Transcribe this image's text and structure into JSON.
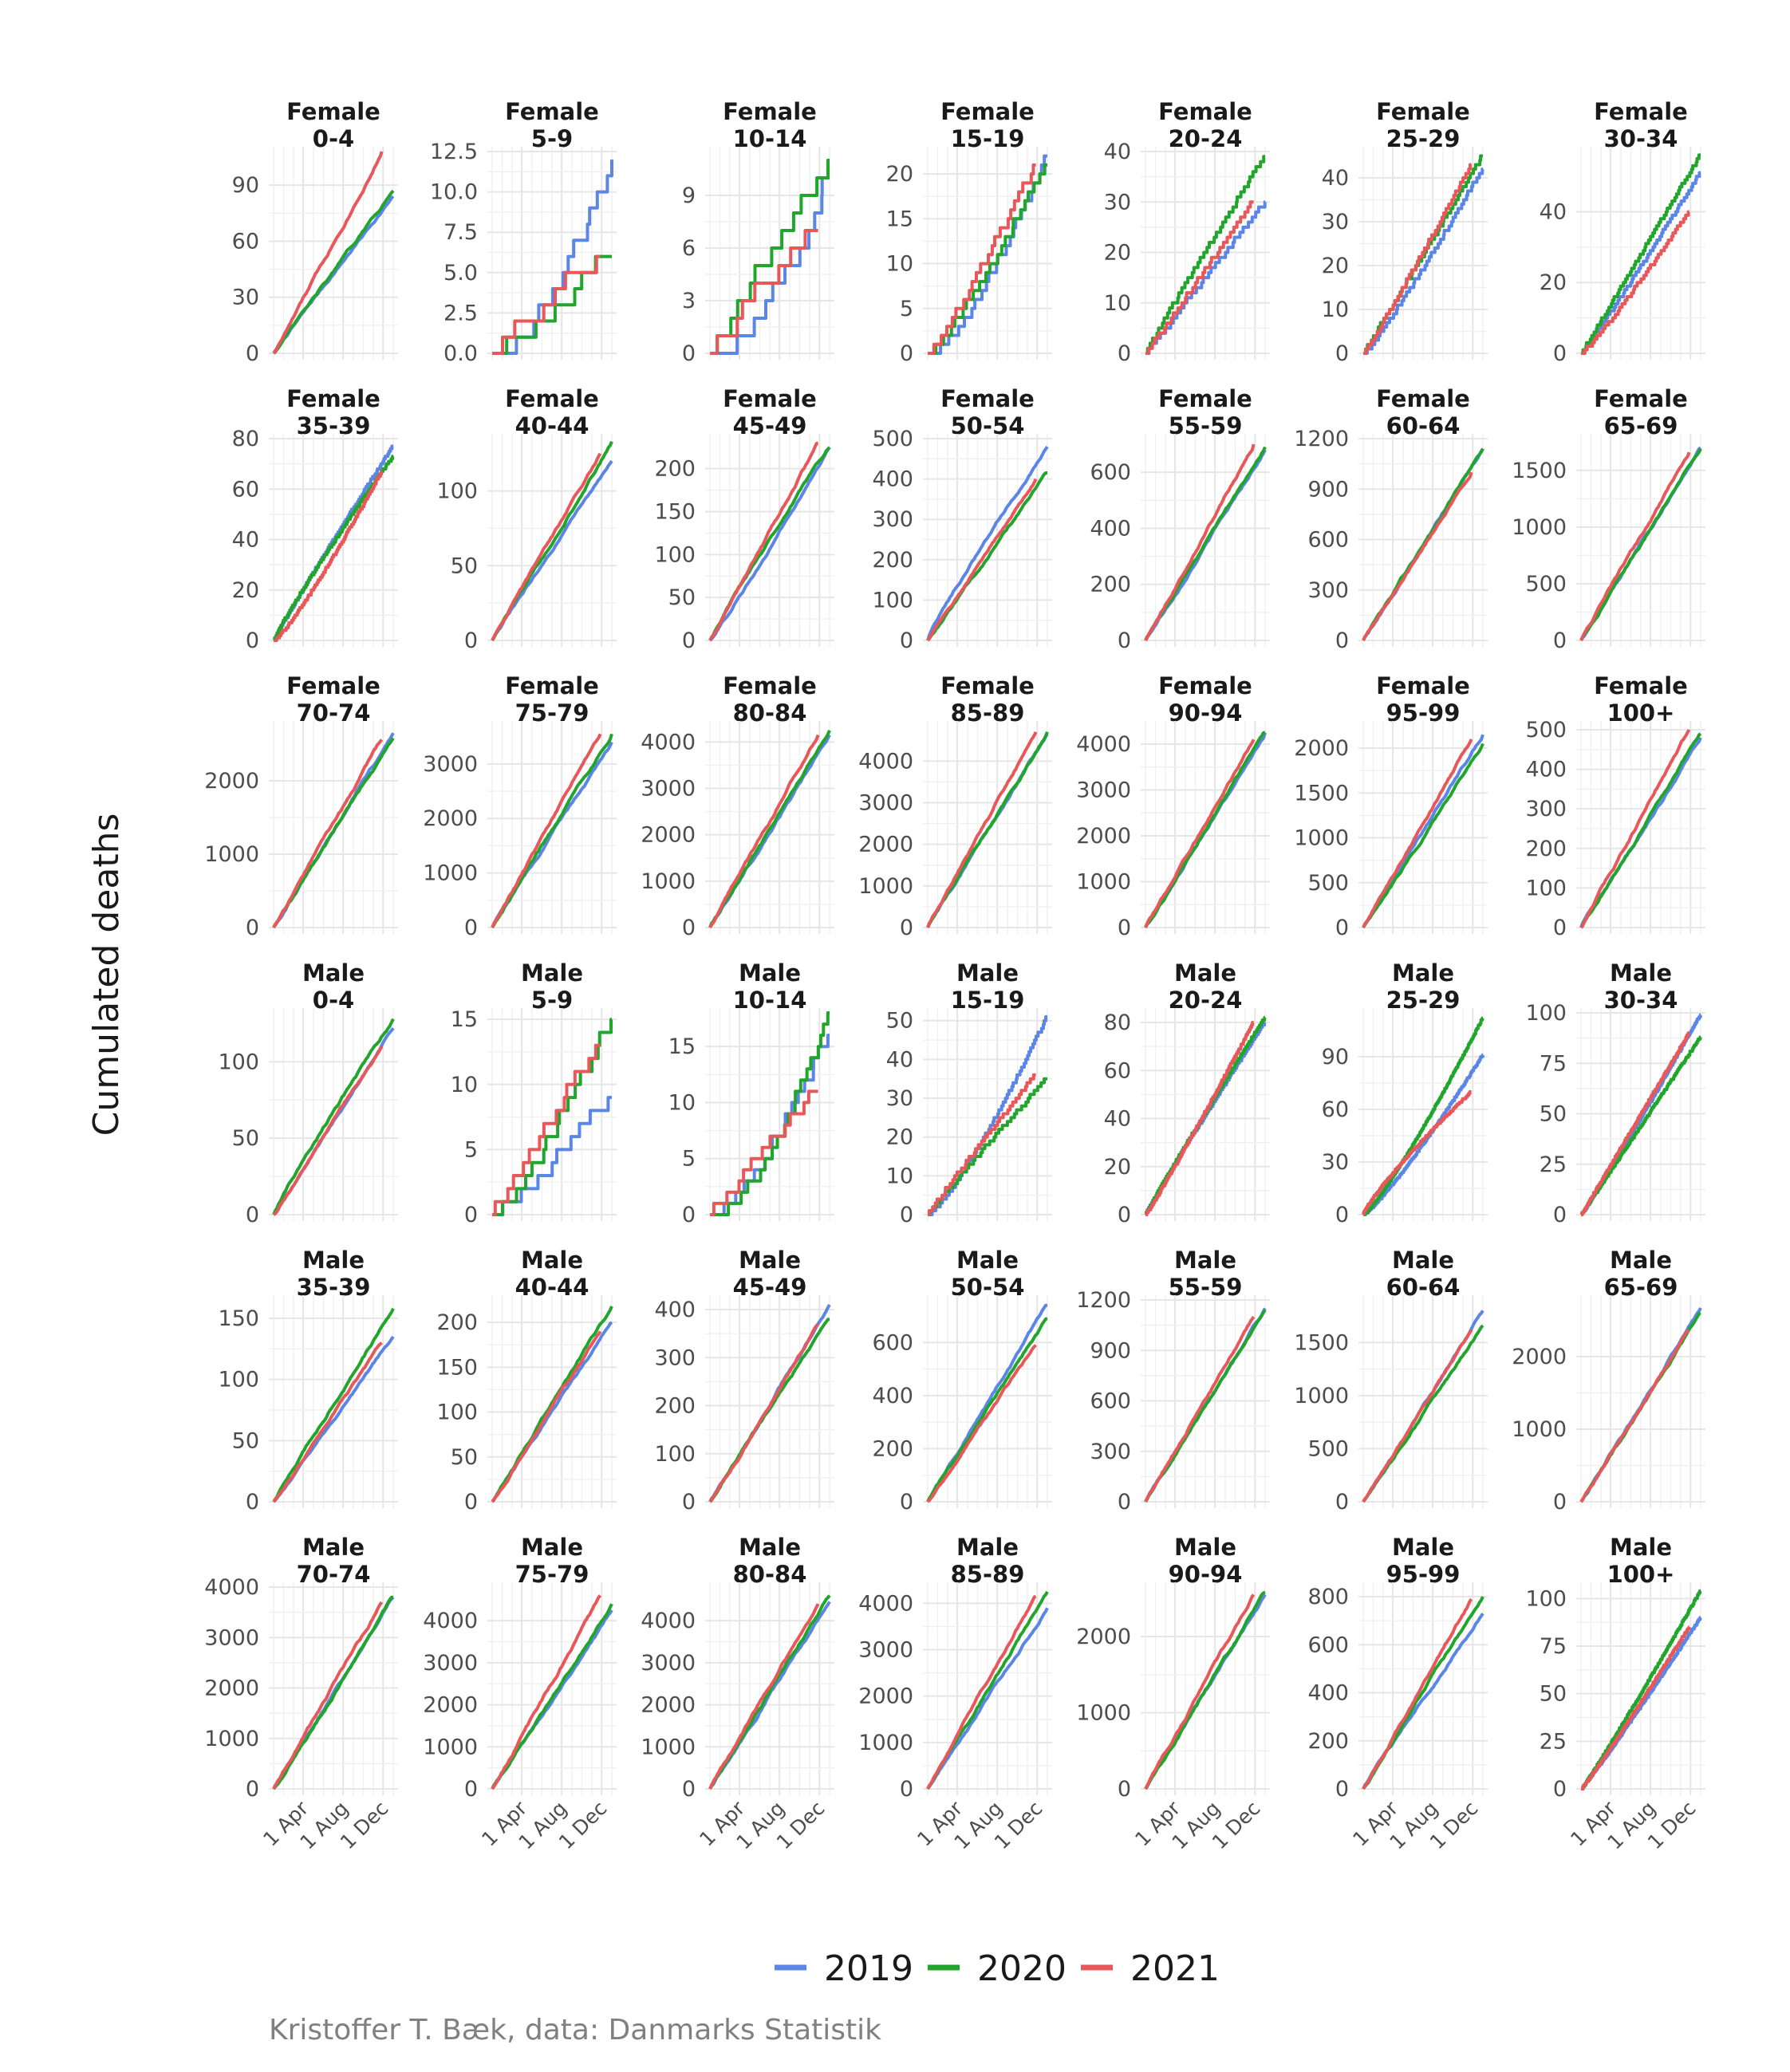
{
  "chart_data": {
    "type": "line",
    "ylabel": "Cumulated deaths",
    "xlabel": "",
    "x_ticks": [
      "1 Apr",
      "1 Aug",
      "1 Dec"
    ],
    "x_tick_days": [
      90,
      212,
      334
    ],
    "x_range_days": [
      0,
      365
    ],
    "grid": true,
    "legend_position": "bottom",
    "legend": [
      {
        "name": "2019",
        "color": "#5b86e5"
      },
      {
        "name": "2020",
        "color": "#22a52c"
      },
      {
        "name": "2021",
        "color": "#e8585a"
      }
    ],
    "caption": "Kristoffer T. Bæk, data: Danmarks Statistik",
    "facets": [
      {
        "sex": "Female",
        "age": "0-4",
        "yticks": [
          "0",
          "30",
          "60",
          "90"
        ],
        "ymax": 108,
        "final": [
          84,
          87,
          108
        ],
        "end_day": [
          365,
          365,
          330
        ],
        "style": "smooth",
        "shape": [
          0.98,
          1.0,
          1.02
        ]
      },
      {
        "sex": "Female",
        "age": "5-9",
        "yticks": [
          "0.0",
          "2.5",
          "5.0",
          "7.5",
          "10.0",
          "12.5"
        ],
        "ymax": 12.5,
        "final": [
          12,
          6,
          6
        ],
        "end_day": [
          365,
          365,
          330
        ],
        "style": "step",
        "shape": [
          0.6,
          1.0,
          1.1
        ]
      },
      {
        "sex": "Female",
        "age": "10-14",
        "yticks": [
          "0",
          "3",
          "6",
          "9"
        ],
        "ymax": 11.5,
        "final": [
          10,
          11,
          7
        ],
        "end_day": [
          365,
          365,
          330
        ],
        "style": "step",
        "shape": [
          0.6,
          1.05,
          1.2
        ]
      },
      {
        "sex": "Female",
        "age": "15-19",
        "yticks": [
          "0",
          "5",
          "10",
          "15",
          "20"
        ],
        "ymax": 22.5,
        "final": [
          22,
          21,
          21
        ],
        "end_day": [
          365,
          365,
          330
        ],
        "style": "step",
        "shape": [
          0.7,
          0.85,
          0.9
        ]
      },
      {
        "sex": "Female",
        "age": "20-24",
        "yticks": [
          "0",
          "10",
          "20",
          "30",
          "40"
        ],
        "ymax": 40,
        "final": [
          30,
          39,
          30
        ],
        "end_day": [
          365,
          365,
          330
        ],
        "style": "step",
        "shape": [
          1.0,
          1.05,
          1.0
        ]
      },
      {
        "sex": "Female",
        "age": "25-29",
        "yticks": [
          "0",
          "10",
          "20",
          "30",
          "40"
        ],
        "ymax": 46,
        "final": [
          42,
          45,
          43
        ],
        "end_day": [
          365,
          365,
          330
        ],
        "style": "step",
        "shape": [
          0.9,
          1.0,
          0.95
        ]
      },
      {
        "sex": "Female",
        "age": "30-34",
        "yticks": [
          "0",
          "20",
          "40"
        ],
        "ymax": 57,
        "final": [
          51,
          56,
          40
        ],
        "end_day": [
          365,
          365,
          330
        ],
        "style": "step",
        "shape": [
          0.95,
          1.0,
          0.9
        ]
      },
      {
        "sex": "Female",
        "age": "35-39",
        "yticks": [
          "0",
          "20",
          "40",
          "60",
          "80"
        ],
        "ymax": 80,
        "final": [
          77,
          73,
          67
        ],
        "end_day": [
          365,
          365,
          330
        ],
        "style": "step",
        "shape": [
          1.05,
          1.1,
          0.85
        ]
      },
      {
        "sex": "Female",
        "age": "40-44",
        "yticks": [
          "0",
          "50",
          "100"
        ],
        "ymax": 135,
        "final": [
          120,
          133,
          125
        ],
        "end_day": [
          365,
          365,
          330
        ],
        "style": "smooth",
        "shape": [
          0.98,
          1.0,
          1.0
        ]
      },
      {
        "sex": "Female",
        "age": "45-49",
        "yticks": [
          "0",
          "50",
          "100",
          "150",
          "200"
        ],
        "ymax": 235,
        "final": [
          225,
          225,
          230
        ],
        "end_day": [
          365,
          365,
          330
        ],
        "style": "smooth",
        "shape": [
          1.05,
          0.95,
          1.0
        ]
      },
      {
        "sex": "Female",
        "age": "50-54",
        "yticks": [
          "0",
          "100",
          "200",
          "300",
          "400",
          "500"
        ],
        "ymax": 500,
        "final": [
          480,
          415,
          400
        ],
        "end_day": [
          365,
          365,
          330
        ],
        "style": "smooth",
        "shape": [
          0.9,
          1.0,
          1.0
        ]
      },
      {
        "sex": "Female",
        "age": "55-59",
        "yticks": [
          "0",
          "200",
          "400",
          "600"
        ],
        "ymax": 720,
        "final": [
          680,
          690,
          700
        ],
        "end_day": [
          365,
          365,
          330
        ],
        "style": "smooth",
        "shape": [
          1.0,
          1.0,
          1.0
        ]
      },
      {
        "sex": "Female",
        "age": "60-64",
        "yticks": [
          "0",
          "300",
          "600",
          "900",
          "1200"
        ],
        "ymax": 1200,
        "final": [
          1140,
          1140,
          1000
        ],
        "end_day": [
          365,
          365,
          330
        ],
        "style": "smooth",
        "shape": [
          1.0,
          1.0,
          1.0
        ]
      },
      {
        "sex": "Female",
        "age": "65-69",
        "yticks": [
          "0",
          "500",
          "1000",
          "1500"
        ],
        "ymax": 1780,
        "final": [
          1700,
          1690,
          1660
        ],
        "end_day": [
          365,
          365,
          330
        ],
        "style": "smooth",
        "shape": [
          1.0,
          1.0,
          1.0
        ]
      },
      {
        "sex": "Female",
        "age": "70-74",
        "yticks": [
          "0",
          "1000",
          "2000"
        ],
        "ymax": 2750,
        "final": [
          2650,
          2580,
          2560
        ],
        "end_day": [
          365,
          365,
          330
        ],
        "style": "smooth",
        "shape": [
          1.0,
          1.0,
          1.0
        ]
      },
      {
        "sex": "Female",
        "age": "75-79",
        "yticks": [
          "0",
          "1000",
          "2000",
          "3000"
        ],
        "ymax": 3700,
        "final": [
          3400,
          3550,
          3550
        ],
        "end_day": [
          365,
          365,
          330
        ],
        "style": "smooth",
        "shape": [
          1.0,
          1.0,
          1.0
        ]
      },
      {
        "sex": "Female",
        "age": "80-84",
        "yticks": [
          "0",
          "1000",
          "2000",
          "3000",
          "4000"
        ],
        "ymax": 4350,
        "final": [
          4150,
          4250,
          4150
        ],
        "end_day": [
          365,
          365,
          330
        ],
        "style": "smooth",
        "shape": [
          1.0,
          1.0,
          1.0
        ]
      },
      {
        "sex": "Female",
        "age": "85-89",
        "yticks": [
          "0",
          "1000",
          "2000",
          "3000",
          "4000"
        ],
        "ymax": 4850,
        "final": [
          4650,
          4700,
          4700
        ],
        "end_day": [
          365,
          365,
          330
        ],
        "style": "smooth",
        "shape": [
          1.0,
          1.0,
          1.0
        ]
      },
      {
        "sex": "Female",
        "age": "90-94",
        "yticks": [
          "0",
          "1000",
          "2000",
          "3000",
          "4000"
        ],
        "ymax": 4400,
        "final": [
          4250,
          4250,
          4100
        ],
        "end_day": [
          365,
          365,
          330
        ],
        "style": "smooth",
        "shape": [
          1.0,
          1.0,
          1.0
        ]
      },
      {
        "sex": "Female",
        "age": "95-99",
        "yticks": [
          "0",
          "500",
          "1000",
          "1500",
          "2000"
        ],
        "ymax": 2250,
        "final": [
          2150,
          2050,
          2100
        ],
        "end_day": [
          365,
          365,
          330
        ],
        "style": "smooth",
        "shape": [
          1.0,
          1.0,
          1.0
        ]
      },
      {
        "sex": "Female",
        "age": "100+",
        "yticks": [
          "0",
          "100",
          "200",
          "300",
          "400",
          "500"
        ],
        "ymax": 510,
        "final": [
          480,
          490,
          500
        ],
        "end_day": [
          365,
          365,
          330
        ],
        "style": "smooth",
        "shape": [
          1.0,
          1.0,
          1.0
        ]
      },
      {
        "sex": "Male",
        "age": "0-4",
        "yticks": [
          "0",
          "50",
          "100"
        ],
        "ymax": 132,
        "final": [
          122,
          128,
          110
        ],
        "end_day": [
          365,
          365,
          330
        ],
        "style": "smooth",
        "shape": [
          1.0,
          0.92,
          1.0
        ]
      },
      {
        "sex": "Male",
        "age": "5-9",
        "yticks": [
          "0",
          "5",
          "10",
          "15"
        ],
        "ymax": 15.5,
        "final": [
          9,
          15,
          13
        ],
        "end_day": [
          365,
          365,
          330
        ],
        "style": "step",
        "shape": [
          0.9,
          0.8,
          1.1
        ]
      },
      {
        "sex": "Male",
        "age": "10-14",
        "yticks": [
          "0",
          "5",
          "10",
          "15"
        ],
        "ymax": 18,
        "final": [
          16,
          18,
          11
        ],
        "end_day": [
          365,
          365,
          330
        ],
        "style": "step",
        "shape": [
          0.7,
          0.6,
          1.1
        ]
      },
      {
        "sex": "Male",
        "age": "15-19",
        "yticks": [
          "0",
          "10",
          "20",
          "30",
          "40",
          "50"
        ],
        "ymax": 52,
        "final": [
          51,
          35,
          36
        ],
        "end_day": [
          365,
          365,
          330
        ],
        "style": "step",
        "shape": [
          0.8,
          1.05,
          1.05
        ]
      },
      {
        "sex": "Male",
        "age": "20-24",
        "yticks": [
          "0",
          "20",
          "40",
          "60",
          "80"
        ],
        "ymax": 84,
        "final": [
          80,
          82,
          80
        ],
        "end_day": [
          365,
          365,
          330
        ],
        "style": "step",
        "shape": [
          1.05,
          1.05,
          0.95
        ]
      },
      {
        "sex": "Male",
        "age": "25-29",
        "yticks": [
          "0",
          "30",
          "60",
          "90"
        ],
        "ymax": 115,
        "final": [
          91,
          112,
          70
        ],
        "end_day": [
          365,
          365,
          330
        ],
        "style": "step",
        "shape": [
          0.85,
          0.85,
          1.2
        ]
      },
      {
        "sex": "Male",
        "age": "30-34",
        "yticks": [
          "0",
          "25",
          "50",
          "75",
          "100"
        ],
        "ymax": 100,
        "final": [
          99,
          88,
          90
        ],
        "end_day": [
          365,
          365,
          330
        ],
        "style": "step",
        "shape": [
          0.95,
          1.0,
          1.0
        ]
      },
      {
        "sex": "Male",
        "age": "35-39",
        "yticks": [
          "0",
          "50",
          "100",
          "150"
        ],
        "ymax": 165,
        "final": [
          135,
          158,
          130
        ],
        "end_day": [
          365,
          365,
          330
        ],
        "style": "smooth",
        "shape": [
          1.0,
          0.97,
          1.0
        ]
      },
      {
        "sex": "Male",
        "age": "40-44",
        "yticks": [
          "0",
          "50",
          "100",
          "150",
          "200"
        ],
        "ymax": 225,
        "final": [
          200,
          218,
          190
        ],
        "end_day": [
          365,
          365,
          330
        ],
        "style": "smooth",
        "shape": [
          0.98,
          1.0,
          1.0
        ]
      },
      {
        "sex": "Male",
        "age": "45-49",
        "yticks": [
          "0",
          "100",
          "200",
          "300",
          "400"
        ],
        "ymax": 420,
        "final": [
          410,
          380,
          370
        ],
        "end_day": [
          365,
          365,
          330
        ],
        "style": "smooth",
        "shape": [
          1.0,
          0.95,
          1.05
        ]
      },
      {
        "sex": "Male",
        "age": "50-54",
        "yticks": [
          "0",
          "200",
          "400",
          "600"
        ],
        "ymax": 760,
        "final": [
          740,
          690,
          590
        ],
        "end_day": [
          365,
          365,
          330
        ],
        "style": "smooth",
        "shape": [
          1.0,
          0.97,
          1.0
        ]
      },
      {
        "sex": "Male",
        "age": "55-59",
        "yticks": [
          "0",
          "300",
          "600",
          "900",
          "1200"
        ],
        "ymax": 1200,
        "final": [
          1150,
          1140,
          1100
        ],
        "end_day": [
          365,
          365,
          330
        ],
        "style": "smooth",
        "shape": [
          1.0,
          1.0,
          1.0
        ]
      },
      {
        "sex": "Male",
        "age": "60-64",
        "yticks": [
          "0",
          "500",
          "1000",
          "1500"
        ],
        "ymax": 1900,
        "final": [
          1800,
          1660,
          1620
        ],
        "end_day": [
          365,
          365,
          330
        ],
        "style": "smooth",
        "shape": [
          1.0,
          1.0,
          1.0
        ]
      },
      {
        "sex": "Male",
        "age": "65-69",
        "yticks": [
          "0",
          "1000",
          "2000"
        ],
        "ymax": 2780,
        "final": [
          2670,
          2600,
          2350
        ],
        "end_day": [
          365,
          365,
          330
        ],
        "style": "smooth",
        "shape": [
          1.0,
          1.0,
          1.0
        ]
      },
      {
        "sex": "Male",
        "age": "70-74",
        "yticks": [
          "0",
          "1000",
          "2000",
          "3000",
          "4000"
        ],
        "ymax": 4000,
        "final": [
          3800,
          3800,
          3700
        ],
        "end_day": [
          365,
          365,
          330
        ],
        "style": "smooth",
        "shape": [
          1.0,
          1.0,
          1.0
        ]
      },
      {
        "sex": "Male",
        "age": "75-79",
        "yticks": [
          "0",
          "1000",
          "2000",
          "3000",
          "4000"
        ],
        "ymax": 4800,
        "final": [
          4250,
          4400,
          4600
        ],
        "end_day": [
          365,
          365,
          330
        ],
        "style": "smooth",
        "shape": [
          1.0,
          1.0,
          1.0
        ]
      },
      {
        "sex": "Male",
        "age": "80-84",
        "yticks": [
          "0",
          "1000",
          "2000",
          "3000",
          "4000"
        ],
        "ymax": 4800,
        "final": [
          4450,
          4600,
          4400
        ],
        "end_day": [
          365,
          365,
          330
        ],
        "style": "smooth",
        "shape": [
          1.0,
          1.0,
          1.0
        ]
      },
      {
        "sex": "Male",
        "age": "85-89",
        "yticks": [
          "0",
          "1000",
          "2000",
          "3000",
          "4000"
        ],
        "ymax": 4350,
        "final": [
          3900,
          4250,
          4150
        ],
        "end_day": [
          365,
          365,
          330
        ],
        "style": "smooth",
        "shape": [
          1.0,
          1.0,
          1.0
        ]
      },
      {
        "sex": "Male",
        "age": "90-94",
        "yticks": [
          "0",
          "1000",
          "2000"
        ],
        "ymax": 2650,
        "final": [
          2550,
          2580,
          2550
        ],
        "end_day": [
          365,
          365,
          330
        ],
        "style": "smooth",
        "shape": [
          1.0,
          1.0,
          1.0
        ]
      },
      {
        "sex": "Male",
        "age": "95-99",
        "yticks": [
          "0",
          "200",
          "400",
          "600",
          "800"
        ],
        "ymax": 840,
        "final": [
          730,
          800,
          790
        ],
        "end_day": [
          365,
          365,
          330
        ],
        "style": "smooth",
        "shape": [
          0.98,
          1.0,
          1.0
        ]
      },
      {
        "sex": "Male",
        "age": "100+",
        "yticks": [
          "0",
          "25",
          "50",
          "75",
          "100"
        ],
        "ymax": 106,
        "final": [
          90,
          104,
          85
        ],
        "end_day": [
          365,
          365,
          330
        ],
        "style": "step",
        "shape": [
          0.95,
          0.95,
          0.95
        ]
      }
    ]
  }
}
